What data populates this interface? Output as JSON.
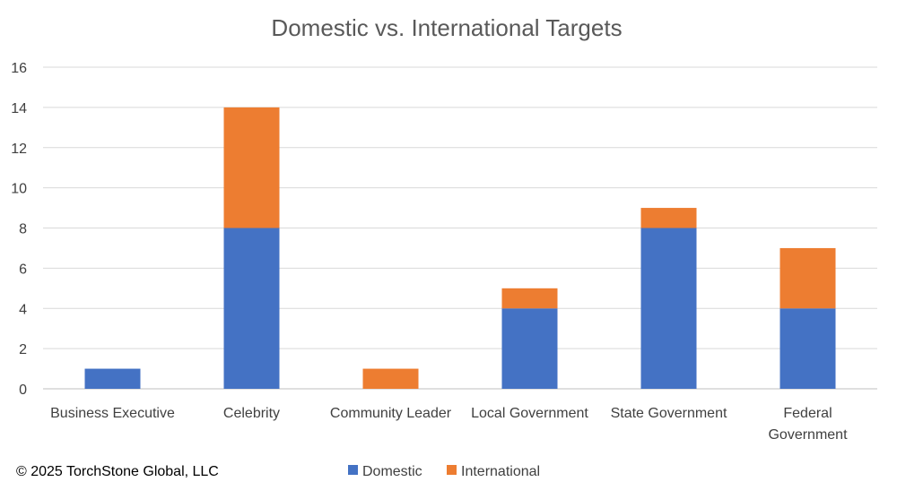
{
  "chart_data": {
    "type": "bar",
    "stacked": true,
    "title": "Domestic vs. International Targets",
    "xlabel": "",
    "ylabel": "",
    "categories": [
      [
        "Business Executive"
      ],
      [
        "Celebrity"
      ],
      [
        "Community Leader"
      ],
      [
        "Local Government"
      ],
      [
        "State Government"
      ],
      [
        "Federal",
        "Government"
      ]
    ],
    "series": [
      {
        "name": "Domestic",
        "color": "#4472c4",
        "values": [
          1,
          8,
          0,
          4,
          8,
          4
        ]
      },
      {
        "name": "International",
        "color": "#ed7d31",
        "values": [
          0,
          6,
          1,
          1,
          1,
          3
        ]
      }
    ],
    "ylim": [
      0,
      16
    ],
    "yticks": [
      "0",
      "2",
      "4",
      "6",
      "8",
      "10",
      "12",
      "14",
      "16"
    ],
    "grid": true,
    "legend_position": "bottom"
  },
  "footer": {
    "copyright": "© 2025 TorchStone Global, LLC"
  }
}
